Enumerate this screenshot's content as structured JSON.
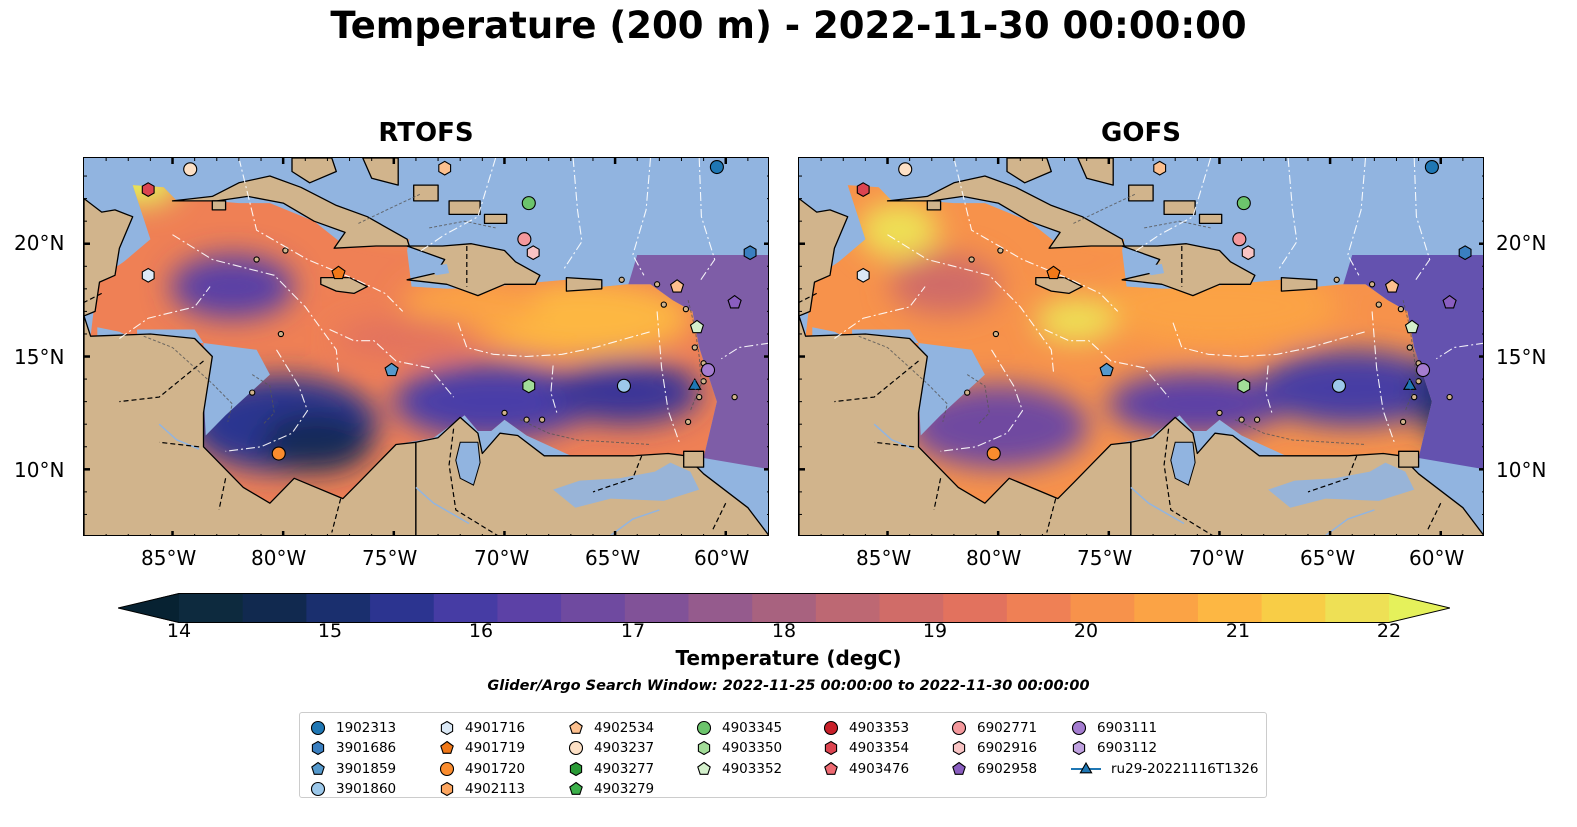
{
  "title": "Temperature (200 m) - 2022-11-30 00:00:00",
  "panels": [
    {
      "title": "RTOFS",
      "variant": "rtofs"
    },
    {
      "title": "GOFS",
      "variant": "gofs"
    }
  ],
  "axes": {
    "x_ticks": [
      "85°W",
      "80°W",
      "75°W",
      "70°W",
      "65°W",
      "60°W"
    ],
    "y_ticks": [
      "20°N",
      "15°N",
      "10°N"
    ]
  },
  "colorbar": {
    "label": "Temperature (degC)",
    "ticks": [
      "14",
      "15",
      "16",
      "17",
      "18",
      "19",
      "20",
      "21",
      "22"
    ],
    "min": 14,
    "max": 22,
    "step": 0.5,
    "colors": [
      "#0d2a3e",
      "#11294f",
      "#1a2f6e",
      "#2c3490",
      "#463ca4",
      "#5c41a6",
      "#6f4aa0",
      "#815298",
      "#955b8d",
      "#a8627f",
      "#bd6873",
      "#d06c68",
      "#e2725e",
      "#ef8055",
      "#f7924b",
      "#fba345",
      "#fdb743",
      "#f8cd46",
      "#eee055"
    ],
    "under": "#072232",
    "over": "#e5f15b"
  },
  "search_window_note": "Glider/Argo Search Window: 2022-11-25 00:00:00 to 2022-11-30 00:00:00",
  "legend": {
    "columns": [
      [
        {
          "label": "1902313",
          "marker": "circle",
          "color": "#1f77b4"
        },
        {
          "label": "3901686",
          "marker": "hexagon",
          "color": "#3a7fc0"
        },
        {
          "label": "3901859",
          "marker": "pentagon",
          "color": "#5599cc"
        },
        {
          "label": "3901860",
          "marker": "circle",
          "color": "#9cc8ea"
        }
      ],
      [
        {
          "label": "4901716",
          "marker": "hexagon",
          "color": "#dbe9f6"
        },
        {
          "label": "4901719",
          "marker": "pentagon",
          "color": "#f07818"
        },
        {
          "label": "4901720",
          "marker": "circle",
          "color": "#fa8c2e"
        },
        {
          "label": "4902113",
          "marker": "hexagon",
          "color": "#fda660"
        }
      ],
      [
        {
          "label": "4902534",
          "marker": "pentagon",
          "color": "#fdc08e"
        },
        {
          "label": "4903237",
          "marker": "circle",
          "color": "#fde0c5"
        },
        {
          "label": "4903277",
          "marker": "hexagon",
          "color": "#2a9a36"
        },
        {
          "label": "4903279",
          "marker": "pentagon",
          "color": "#3cb04a"
        }
      ],
      [
        {
          "label": "4903345",
          "marker": "circle",
          "color": "#6cc46c"
        },
        {
          "label": "4903350",
          "marker": "hexagon",
          "color": "#a2dc98"
        },
        {
          "label": "4903352",
          "marker": "pentagon",
          "color": "#d4f0cc"
        }
      ],
      [
        {
          "label": "4903353",
          "marker": "circle",
          "color": "#c8202a"
        },
        {
          "label": "4903354",
          "marker": "hexagon",
          "color": "#dc4450"
        },
        {
          "label": "4903476",
          "marker": "pentagon",
          "color": "#ee6a72"
        }
      ],
      [
        {
          "label": "6902771",
          "marker": "circle",
          "color": "#f4989c"
        },
        {
          "label": "6902916",
          "marker": "hexagon",
          "color": "#f8c4c4"
        },
        {
          "label": "6902958",
          "marker": "pentagon",
          "color": "#8a5ec0"
        }
      ],
      [
        {
          "label": "6903111",
          "marker": "circle",
          "color": "#a47cd0"
        },
        {
          "label": "6903112",
          "marker": "hexagon",
          "color": "#c0a2e0"
        },
        {
          "label": "ru29-20221116T1326",
          "marker": "glider-track",
          "color": "#1f77b4"
        }
      ]
    ]
  }
}
